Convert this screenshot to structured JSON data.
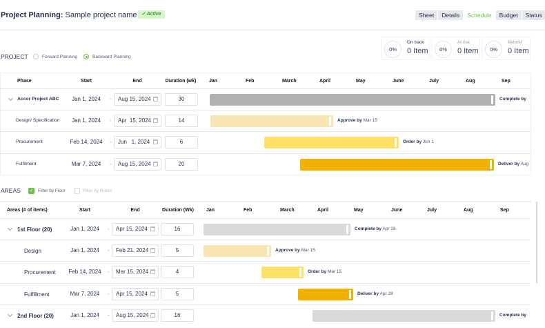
{
  "header": {
    "title_bold": "Project Planning:",
    "title_rest": "Sample project name",
    "status_badge": "Active"
  },
  "tabs": [
    {
      "label": "Sheet"
    },
    {
      "label": "Details"
    },
    {
      "label": "Schedule",
      "active": true
    },
    {
      "label": "Budget"
    },
    {
      "label": "Status"
    }
  ],
  "stats": [
    {
      "pct": "0%",
      "label": "On track",
      "value": "0 Item"
    },
    {
      "pct": "0%",
      "label": "At risk",
      "value": "0 Item"
    },
    {
      "pct": "0%",
      "label": "Behind",
      "value": "0 Item"
    }
  ],
  "project": {
    "label": "PROJECT",
    "options": [
      {
        "label": "Forward Planning",
        "selected": false
      },
      {
        "label": "Backward Planning",
        "selected": true
      }
    ],
    "columns": [
      "Phase",
      "Start",
      "End",
      "Duration (wk)"
    ],
    "months": [
      "Jan",
      "Feb",
      "March",
      "April",
      "May",
      "June",
      "July",
      "Aug",
      "Sep"
    ],
    "rows": [
      {
        "name": "Accor Project ABC",
        "start": "Jan 1, 2024",
        "end": "Aug 15, 2024",
        "duration": "30",
        "milestone_verb": "Complete by",
        "milestone_date": "",
        "color": "#b0b1b4",
        "group": true
      },
      {
        "name": "Design/ Specification",
        "start": "Jan 1, 2024",
        "end": "Apr  15, 2024",
        "duration": "14",
        "milestone_verb": "Approve by",
        "milestone_date": "Mar 15",
        "color": "#f8e5b3"
      },
      {
        "name": "Procurement",
        "start": "Feb 14, 2024",
        "end": "Jun   1, 2024",
        "duration": "6",
        "milestone_verb": "Order by",
        "milestone_date": "Jun 1",
        "color": "#ffe066"
      },
      {
        "name": "Fulfilment",
        "start": "Mar  7, 2024",
        "end": "Aug 15, 2024",
        "duration": "20",
        "milestone_verb": "Deliver by",
        "milestone_date": "Aug",
        "color": "#f2b000"
      }
    ]
  },
  "areas": {
    "label": "AREAS",
    "filters": [
      {
        "label": "Filter by Floor",
        "checked": true
      },
      {
        "label": "Filter by Room",
        "checked": false
      }
    ],
    "columns": [
      "Areas (# of items)",
      "Start",
      "End",
      "Duration (Wk)"
    ],
    "months": [
      "Jan",
      "Feb",
      "March",
      "April",
      "May",
      "June",
      "July",
      "Aug",
      "Sep"
    ],
    "rows": [
      {
        "name": "1st Floor (20)",
        "start": "Jan 1, 2024",
        "end": "Apr 15, 2024",
        "duration": "16",
        "milestone_verb": "Complete by",
        "milestone_date": "Apr 28",
        "color": "#d9d9d9",
        "group": true
      },
      {
        "name": "Design",
        "start": "Jan 1, 2024",
        "end": "Feb 21, 2024",
        "duration": "5",
        "milestone_verb": "Approve by",
        "milestone_date": "Mar 15",
        "color": "#f8e5b3"
      },
      {
        "name": "Procurement",
        "start": "Feb 14, 2024",
        "end": "Mar 15, 2024",
        "duration": "4",
        "milestone_verb": "Order by",
        "milestone_date": "Mar 15",
        "color": "#ffe066"
      },
      {
        "name": "Fulfillment",
        "start": "Mar  7, 2024",
        "end": "Apr 15, 2024",
        "duration": "5",
        "milestone_verb": "Deliver by",
        "milestone_date": "Apr 28",
        "color": "#f2b000"
      },
      {
        "name": "2nd Floor (20)",
        "start": "Jan 1, 2024",
        "end": "Aug 15, 2024",
        "duration": "16",
        "milestone_verb": "Complete by",
        "milestone_date": "",
        "color": "#d9d9d9",
        "group": true
      }
    ]
  }
}
